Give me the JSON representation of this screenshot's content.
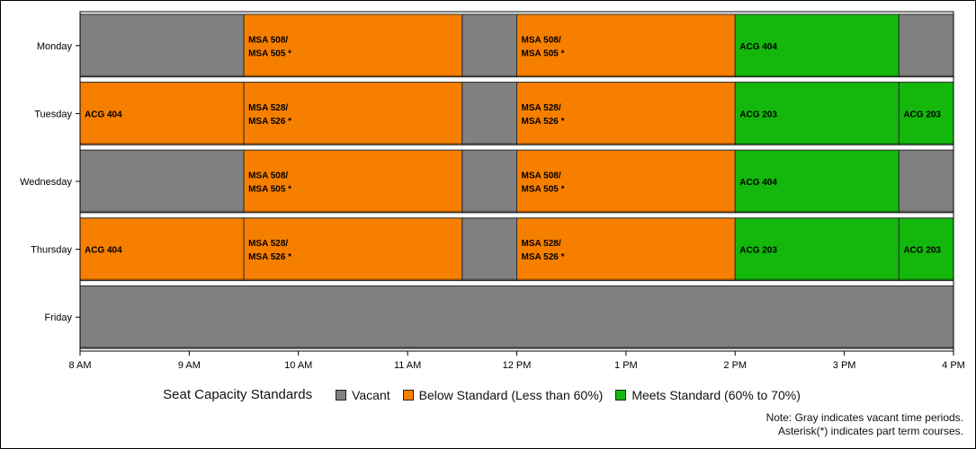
{
  "chart_data": {
    "type": "bar",
    "orientation": "horizontal",
    "stacked_timeline": true,
    "x_range": [
      "8 AM",
      "4 PM"
    ],
    "x_ticks": [
      "8 AM",
      "9 AM",
      "10 AM",
      "11 AM",
      "12 PM",
      "1 PM",
      "2 PM",
      "3 PM",
      "4 PM"
    ],
    "days": [
      "Monday",
      "Tuesday",
      "Wednesday",
      "Thursday",
      "Friday"
    ],
    "status_colors": {
      "vacant": "#808080",
      "below": "#f77f00",
      "meets": "#14b80d"
    },
    "schedule": [
      [
        {
          "start": "8:00",
          "end": "9:30",
          "status": "vacant",
          "label": []
        },
        {
          "start": "9:30",
          "end": "11:30",
          "status": "below",
          "label": [
            "MSA 508/",
            "MSA 505 *"
          ]
        },
        {
          "start": "11:30",
          "end": "12:00",
          "status": "vacant",
          "label": []
        },
        {
          "start": "12:00",
          "end": "14:00",
          "status": "below",
          "label": [
            "MSA 508/",
            "MSA 505 *"
          ]
        },
        {
          "start": "14:00",
          "end": "15:30",
          "status": "meets",
          "label": [
            "ACG 404"
          ]
        },
        {
          "start": "15:30",
          "end": "16:00",
          "status": "vacant",
          "label": []
        }
      ],
      [
        {
          "start": "8:00",
          "end": "9:30",
          "status": "below",
          "label": [
            "ACG 404"
          ]
        },
        {
          "start": "9:30",
          "end": "11:30",
          "status": "below",
          "label": [
            "MSA 528/",
            "MSA 526 *"
          ]
        },
        {
          "start": "11:30",
          "end": "12:00",
          "status": "vacant",
          "label": []
        },
        {
          "start": "12:00",
          "end": "14:00",
          "status": "below",
          "label": [
            "MSA 528/",
            "MSA 526 *"
          ]
        },
        {
          "start": "14:00",
          "end": "15:30",
          "status": "meets",
          "label": [
            "ACG 203"
          ]
        },
        {
          "start": "15:30",
          "end": "16:00",
          "status": "meets",
          "label": [
            "ACG 203"
          ]
        }
      ],
      [
        {
          "start": "8:00",
          "end": "9:30",
          "status": "vacant",
          "label": []
        },
        {
          "start": "9:30",
          "end": "11:30",
          "status": "below",
          "label": [
            "MSA 508/",
            "MSA 505 *"
          ]
        },
        {
          "start": "11:30",
          "end": "12:00",
          "status": "vacant",
          "label": []
        },
        {
          "start": "12:00",
          "end": "14:00",
          "status": "below",
          "label": [
            "MSA 508/",
            "MSA 505 *"
          ]
        },
        {
          "start": "14:00",
          "end": "15:30",
          "status": "meets",
          "label": [
            "ACG 404"
          ]
        },
        {
          "start": "15:30",
          "end": "16:00",
          "status": "vacant",
          "label": []
        }
      ],
      [
        {
          "start": "8:00",
          "end": "9:30",
          "status": "below",
          "label": [
            "ACG 404"
          ]
        },
        {
          "start": "9:30",
          "end": "11:30",
          "status": "below",
          "label": [
            "MSA 528/",
            "MSA 526 *"
          ]
        },
        {
          "start": "11:30",
          "end": "12:00",
          "status": "vacant",
          "label": []
        },
        {
          "start": "12:00",
          "end": "14:00",
          "status": "below",
          "label": [
            "MSA 528/",
            "MSA 526 *"
          ]
        },
        {
          "start": "14:00",
          "end": "15:30",
          "status": "meets",
          "label": [
            "ACG 203"
          ]
        },
        {
          "start": "15:30",
          "end": "16:00",
          "status": "meets",
          "label": [
            "ACG 203"
          ]
        }
      ],
      [
        {
          "start": "8:00",
          "end": "16:00",
          "status": "vacant",
          "label": []
        }
      ]
    ],
    "legend": {
      "title": "Seat Capacity Standards",
      "items": [
        {
          "key": "vacant",
          "label": "Vacant"
        },
        {
          "key": "below",
          "label": "Below Standard (Less than 60%)"
        },
        {
          "key": "meets",
          "label": "Meets Standard (60% to 70%)"
        }
      ]
    },
    "notes": [
      "Note: Gray indicates vacant time periods.",
      "Asterisk(*) indicates part term courses."
    ]
  }
}
